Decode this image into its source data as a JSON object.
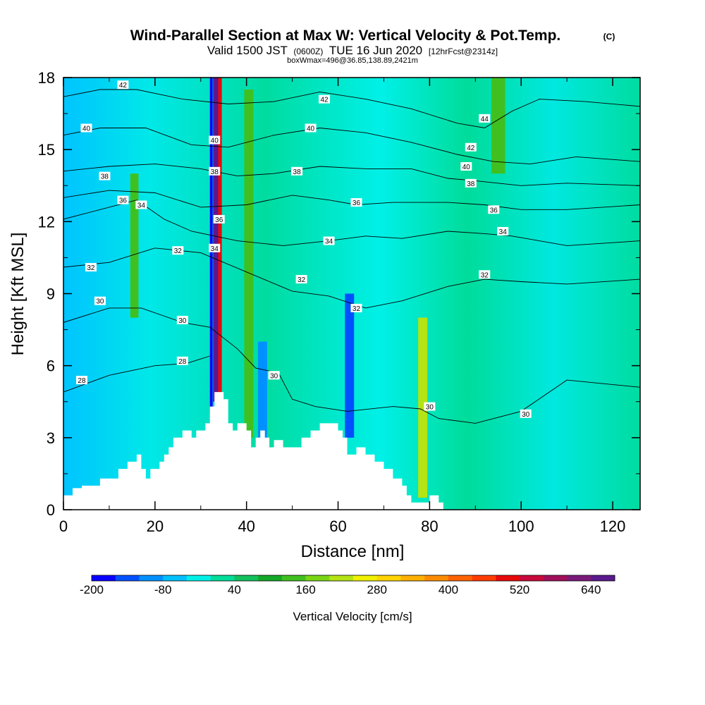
{
  "title": {
    "main": "Wind-Parallel Section at Max W: Vertical Velocity & Pot.Temp.",
    "copyright": "(C)",
    "valid_prefix": "Valid 1500 JST",
    "valid_utc": "(0600Z)",
    "valid_date": "TUE 16 Jun 2020",
    "forecast": "[12hrFcst@2314z]",
    "box_info": "boxWmax=496@36.85,138.89,2421m"
  },
  "chart_data": {
    "type": "heatmap",
    "xlabel": "Distance [nm]",
    "ylabel": "Height [Kft MSL]",
    "xlim": [
      0,
      126
    ],
    "ylim": [
      0,
      18
    ],
    "x_ticks": [
      0,
      20,
      40,
      60,
      80,
      100,
      120
    ],
    "y_ticks": [
      0,
      3,
      6,
      9,
      12,
      15,
      18
    ],
    "colorbar": {
      "label": "Vertical Velocity [cm/s]",
      "min": -200,
      "max": 680,
      "step": 40,
      "tick_labels": [
        -200,
        -80,
        40,
        160,
        280,
        400,
        520,
        640
      ],
      "colors": [
        "#0a00ff",
        "#0050ff",
        "#0090ff",
        "#00c0ff",
        "#00f0e8",
        "#00dc9a",
        "#12c05e",
        "#14a828",
        "#40c020",
        "#7ad614",
        "#b4e414",
        "#f0f000",
        "#ffd400",
        "#ffb000",
        "#ff8c00",
        "#ff6400",
        "#ff3c00",
        "#e80a0a",
        "#c80a3c",
        "#a0105a",
        "#7a1a78",
        "#5a1a8c"
      ]
    },
    "terrain": [
      [
        0,
        0.6
      ],
      [
        2,
        0.6
      ],
      [
        2,
        0.9
      ],
      [
        4,
        0.9
      ],
      [
        4,
        1
      ],
      [
        8,
        1
      ],
      [
        8,
        1.3
      ],
      [
        12,
        1.3
      ],
      [
        12,
        1.7
      ],
      [
        14,
        1.7
      ],
      [
        14,
        2
      ],
      [
        16,
        2
      ],
      [
        16,
        2.3
      ],
      [
        17,
        2.3
      ],
      [
        17,
        1.7
      ],
      [
        18,
        1.7
      ],
      [
        18,
        1.3
      ],
      [
        19,
        1.3
      ],
      [
        19,
        1.7
      ],
      [
        21,
        1.7
      ],
      [
        21,
        2
      ],
      [
        22,
        2
      ],
      [
        22,
        2.3
      ],
      [
        23,
        2.3
      ],
      [
        23,
        2.6
      ],
      [
        24,
        2.6
      ],
      [
        24,
        3
      ],
      [
        26,
        3
      ],
      [
        26,
        3.3
      ],
      [
        28,
        3.3
      ],
      [
        28,
        3
      ],
      [
        29,
        3
      ],
      [
        29,
        3.3
      ],
      [
        31,
        3.3
      ],
      [
        31,
        3.6
      ],
      [
        32,
        3.6
      ],
      [
        32,
        4.3
      ],
      [
        33,
        4.3
      ],
      [
        33,
        4.9
      ],
      [
        35,
        4.9
      ],
      [
        35,
        4.6
      ],
      [
        36,
        4.6
      ],
      [
        36,
        3.6
      ],
      [
        37,
        3.6
      ],
      [
        37,
        3.3
      ],
      [
        38,
        3.3
      ],
      [
        38,
        3.6
      ],
      [
        40,
        3.6
      ],
      [
        40,
        3.3
      ],
      [
        41,
        3.3
      ],
      [
        41,
        2.6
      ],
      [
        42,
        2.6
      ],
      [
        42,
        3
      ],
      [
        43,
        3
      ],
      [
        43,
        3.3
      ],
      [
        44,
        3.3
      ],
      [
        44,
        3
      ],
      [
        45,
        3
      ],
      [
        45,
        2.6
      ],
      [
        46,
        2.6
      ],
      [
        46,
        2.9
      ],
      [
        48,
        2.9
      ],
      [
        48,
        2.6
      ],
      [
        52,
        2.6
      ],
      [
        52,
        3
      ],
      [
        54,
        3
      ],
      [
        54,
        3.3
      ],
      [
        56,
        3.3
      ],
      [
        56,
        3.6
      ],
      [
        60,
        3.6
      ],
      [
        60,
        3.3
      ],
      [
        61,
        3.3
      ],
      [
        61,
        3
      ],
      [
        62,
        3
      ],
      [
        62,
        2.3
      ],
      [
        64,
        2.3
      ],
      [
        64,
        2.6
      ],
      [
        66,
        2.6
      ],
      [
        66,
        2.3
      ],
      [
        68,
        2.3
      ],
      [
        68,
        2
      ],
      [
        70,
        2
      ],
      [
        70,
        1.7
      ],
      [
        72,
        1.7
      ],
      [
        72,
        1.3
      ],
      [
        74,
        1.3
      ],
      [
        74,
        1
      ],
      [
        75,
        1
      ],
      [
        75,
        0.6
      ],
      [
        76,
        0.6
      ],
      [
        76,
        0.3
      ],
      [
        80,
        0.3
      ],
      [
        80,
        0.6
      ],
      [
        82,
        0.6
      ],
      [
        82,
        0.3
      ],
      [
        83,
        0.3
      ],
      [
        83,
        0
      ]
    ],
    "theta_contours": [
      {
        "value": 28,
        "label": "28",
        "points": [
          [
            0,
            4.9
          ],
          [
            10,
            5.6
          ],
          [
            20,
            6
          ],
          [
            27,
            6.1
          ],
          [
            32,
            6.4
          ]
        ]
      },
      {
        "value": 30,
        "label": "30",
        "points": [
          [
            0,
            7.8
          ],
          [
            10,
            8.4
          ],
          [
            17,
            8.4
          ],
          [
            26,
            7.8
          ],
          [
            32,
            7.6
          ],
          [
            38,
            6.7
          ],
          [
            42,
            5.9
          ],
          [
            47,
            5.7
          ],
          [
            50,
            4.6
          ],
          [
            55,
            4.3
          ],
          [
            62,
            4.1
          ],
          [
            72,
            4.3
          ],
          [
            78,
            4.2
          ],
          [
            82,
            3.8
          ],
          [
            90,
            3.6
          ],
          [
            100,
            4.1
          ],
          [
            110,
            5.4
          ],
          [
            126,
            5.1
          ]
        ]
      },
      {
        "value": 32,
        "label": "32",
        "points": [
          [
            0,
            10.1
          ],
          [
            10,
            10.3
          ],
          [
            20,
            10.9
          ],
          [
            30,
            10.7
          ],
          [
            40,
            9.9
          ],
          [
            50,
            9.1
          ],
          [
            58,
            8.9
          ],
          [
            66,
            8.4
          ],
          [
            74,
            8.7
          ],
          [
            84,
            9.3
          ],
          [
            92,
            9.6
          ],
          [
            100,
            9.5
          ],
          [
            110,
            9.4
          ],
          [
            126,
            9.6
          ]
        ]
      },
      {
        "value": 34,
        "label": "34",
        "points": [
          [
            0,
            12.1
          ],
          [
            10,
            12.6
          ],
          [
            16,
            12.9
          ],
          [
            22,
            12.1
          ],
          [
            28,
            11.6
          ],
          [
            38,
            11.2
          ],
          [
            48,
            11.0
          ],
          [
            58,
            11.2
          ],
          [
            66,
            11.4
          ],
          [
            74,
            11.3
          ],
          [
            84,
            11.6
          ],
          [
            92,
            11.5
          ],
          [
            98,
            11.4
          ],
          [
            110,
            11.0
          ],
          [
            126,
            11.2
          ]
        ]
      },
      {
        "value": 36,
        "label": "36",
        "points": [
          [
            0,
            13.0
          ],
          [
            10,
            13.3
          ],
          [
            20,
            13.2
          ],
          [
            30,
            12.6
          ],
          [
            40,
            12.7
          ],
          [
            50,
            13.1
          ],
          [
            58,
            12.9
          ],
          [
            64,
            12.7
          ],
          [
            72,
            12.8
          ],
          [
            84,
            12.8
          ],
          [
            92,
            12.7
          ],
          [
            100,
            12.5
          ],
          [
            110,
            12.5
          ],
          [
            126,
            12.7
          ]
        ]
      },
      {
        "value": 38,
        "label": "38",
        "points": [
          [
            0,
            14.1
          ],
          [
            10,
            14.3
          ],
          [
            20,
            14.4
          ],
          [
            30,
            14.2
          ],
          [
            38,
            13.9
          ],
          [
            46,
            14.0
          ],
          [
            56,
            14.3
          ],
          [
            66,
            14.2
          ],
          [
            76,
            14.2
          ],
          [
            84,
            13.8
          ],
          [
            90,
            13.7
          ],
          [
            100,
            13.5
          ],
          [
            110,
            13.6
          ],
          [
            126,
            13.5
          ]
        ]
      },
      {
        "value": 40,
        "label": "40",
        "points": [
          [
            0,
            15.6
          ],
          [
            8,
            15.9
          ],
          [
            18,
            15.9
          ],
          [
            28,
            15.2
          ],
          [
            36,
            15.1
          ],
          [
            46,
            15.6
          ],
          [
            56,
            15.9
          ],
          [
            66,
            15.7
          ],
          [
            76,
            15.3
          ],
          [
            86,
            14.8
          ],
          [
            94,
            14.5
          ],
          [
            102,
            14.4
          ],
          [
            112,
            14.7
          ],
          [
            126,
            14.5
          ]
        ]
      },
      {
        "value": 42,
        "label": "42",
        "points": [
          [
            0,
            17.2
          ],
          [
            8,
            17.5
          ],
          [
            16,
            17.5
          ],
          [
            26,
            17.1
          ],
          [
            36,
            16.9
          ],
          [
            46,
            17.0
          ],
          [
            56,
            17.4
          ],
          [
            66,
            17.1
          ],
          [
            76,
            16.7
          ],
          [
            86,
            16.1
          ],
          [
            92,
            15.9
          ],
          [
            98,
            16.6
          ],
          [
            104,
            17.1
          ],
          [
            114,
            17.0
          ],
          [
            126,
            16.8
          ]
        ]
      }
    ],
    "contour_labels": [
      {
        "text": "42",
        "x": 13,
        "y": 17.7
      },
      {
        "text": "40",
        "x": 5,
        "y": 15.9
      },
      {
        "text": "38",
        "x": 9,
        "y": 13.9
      },
      {
        "text": "36",
        "x": 13,
        "y": 12.9
      },
      {
        "text": "34",
        "x": 17,
        "y": 12.7
      },
      {
        "text": "32",
        "x": 6,
        "y": 10.1
      },
      {
        "text": "30",
        "x": 8,
        "y": 8.7
      },
      {
        "text": "28",
        "x": 4,
        "y": 5.4
      },
      {
        "text": "32",
        "x": 25,
        "y": 10.8
      },
      {
        "text": "30",
        "x": 26,
        "y": 7.9
      },
      {
        "text": "28",
        "x": 26,
        "y": 6.2
      },
      {
        "text": "40",
        "x": 33,
        "y": 15.4
      },
      {
        "text": "38",
        "x": 33,
        "y": 14.1
      },
      {
        "text": "36",
        "x": 34,
        "y": 12.1
      },
      {
        "text": "34",
        "x": 33,
        "y": 10.9
      },
      {
        "text": "30",
        "x": 46,
        "y": 5.6
      },
      {
        "text": "42",
        "x": 57,
        "y": 17.1
      },
      {
        "text": "40",
        "x": 54,
        "y": 15.9
      },
      {
        "text": "38",
        "x": 51,
        "y": 14.1
      },
      {
        "text": "36",
        "x": 64,
        "y": 12.8
      },
      {
        "text": "34",
        "x": 58,
        "y": 11.2
      },
      {
        "text": "32",
        "x": 52,
        "y": 9.6
      },
      {
        "text": "32",
        "x": 64,
        "y": 8.4
      },
      {
        "text": "30",
        "x": 80,
        "y": 4.3
      },
      {
        "text": "44",
        "x": 92,
        "y": 16.3
      },
      {
        "text": "42",
        "x": 89,
        "y": 15.1
      },
      {
        "text": "40",
        "x": 88,
        "y": 14.3
      },
      {
        "text": "38",
        "x": 89,
        "y": 13.6
      },
      {
        "text": "36",
        "x": 94,
        "y": 12.5
      },
      {
        "text": "34",
        "x": 96,
        "y": 11.6
      },
      {
        "text": "32",
        "x": 92,
        "y": 9.8
      },
      {
        "text": "30",
        "x": 101,
        "y": 4.0
      }
    ],
    "w_field_features": [
      {
        "x": 33.5,
        "width": 1.6,
        "z_from": 4.5,
        "z_to": 18,
        "value": 680
      },
      {
        "x": 34.2,
        "width": 0.8,
        "z_from": 4.0,
        "z_to": 18,
        "value": 496
      },
      {
        "x": 32.3,
        "width": 0.6,
        "z_from": 4.0,
        "z_to": 18,
        "value": -200
      },
      {
        "x": 40.5,
        "width": 2.0,
        "z_from": 3.0,
        "z_to": 17.5,
        "value": 120
      },
      {
        "x": 78.5,
        "width": 2.0,
        "z_from": 0.5,
        "z_to": 8.0,
        "value": 200
      },
      {
        "x": 15.5,
        "width": 1.8,
        "z_from": 8.0,
        "z_to": 14.0,
        "value": 120
      },
      {
        "x": 62.5,
        "width": 2.0,
        "z_from": 3.0,
        "z_to": 9.0,
        "value": -130
      },
      {
        "x": 43.5,
        "width": 2.0,
        "z_from": 3.0,
        "z_to": 7.0,
        "value": -120
      },
      {
        "x": 95.0,
        "width": 3.0,
        "z_from": 14.0,
        "z_to": 18.0,
        "value": 120
      }
    ]
  }
}
